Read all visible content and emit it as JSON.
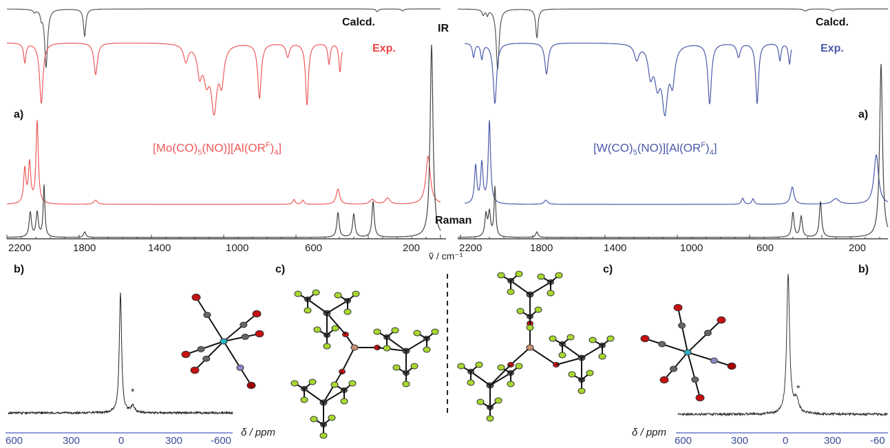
{
  "ir_label": "IR",
  "raman_label": "Raman",
  "axis_label": "ṽ / cm⁻¹",
  "left": {
    "calcd_label": "Calcd.",
    "exp_label": "Exp.",
    "panel_a": "a)",
    "panel_b": "b)",
    "panel_c": "c)",
    "formula": {
      "m": "Mo",
      "pre": "[",
      "mid1": "(CO)",
      "n5": "5",
      "mid2": "(NO)][Al(OR",
      "supF": "F",
      "mid3": ")",
      "n4": "4",
      "end": "]"
    },
    "color": "#ee5a5a",
    "ticks": [
      "2200",
      "1800",
      "1400",
      "1000",
      "600",
      "200"
    ],
    "ppm_ticks": [
      "600",
      "300",
      "0",
      "300",
      "-600"
    ],
    "ppm_label": "δ / ppm",
    "star": "*"
  },
  "right": {
    "calcd_label": "Calcd.",
    "exp_label": "Exp.",
    "panel_a": "a)",
    "panel_b": "b)",
    "panel_c": "c)",
    "formula": {
      "m": "W",
      "pre": "[",
      "mid1": "(CO)",
      "n5": "5",
      "mid2": "(NO)][Al(OR",
      "supF": "F",
      "mid3": ")",
      "n4": "4",
      "end": "]"
    },
    "color": "#4a5aaa",
    "ticks": [
      "2200",
      "1800",
      "1400",
      "1000",
      "600",
      "200"
    ],
    "ppm_ticks": [
      "600",
      "300",
      "0",
      "300",
      "-60"
    ],
    "ppm_label": "δ / ppm",
    "star": "*"
  }
}
